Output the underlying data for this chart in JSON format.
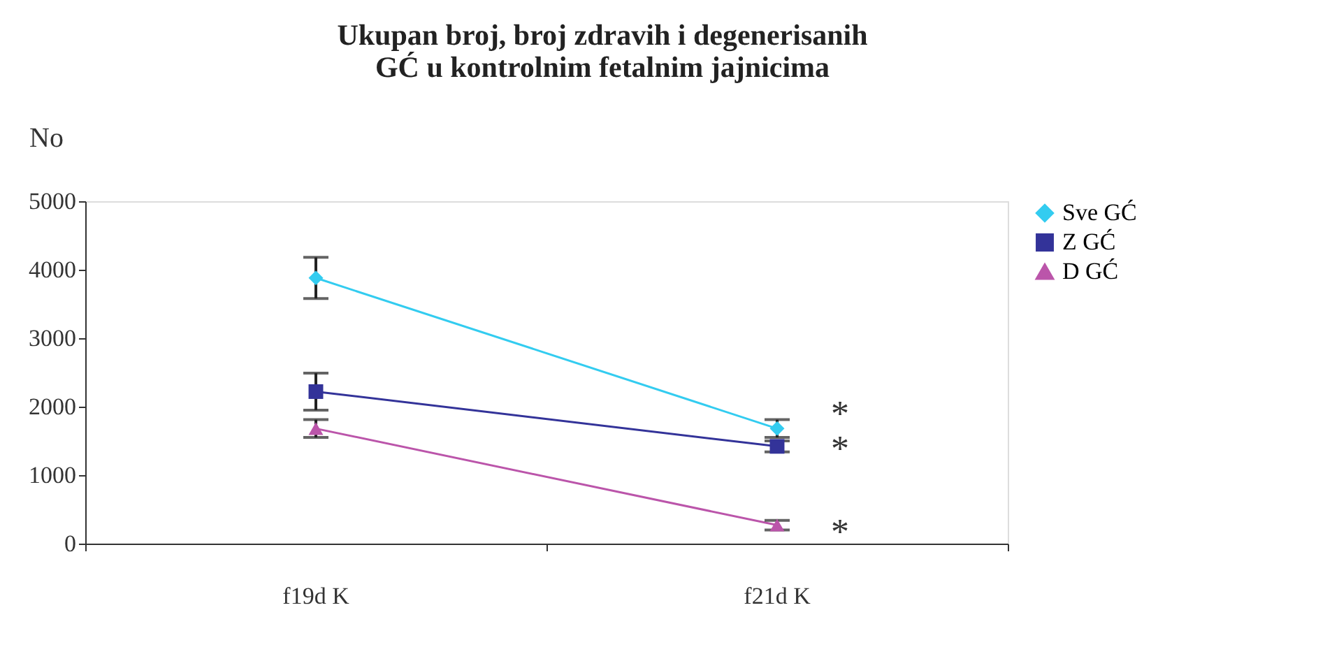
{
  "chart_data": {
    "type": "line",
    "title": "Ukupan broj, broj zdravih i  degenerisanih GĆ u kontrolnim fetalnim jajnicima",
    "ylabel": "No",
    "categories": [
      "f19d K",
      "f21d K"
    ],
    "series": [
      {
        "name": "Sve GĆ",
        "color": "#33ccf0",
        "marker": "diamond",
        "values": [
          3880,
          1680
        ],
        "errors": [
          300,
          130
        ]
      },
      {
        "name": "Z GĆ",
        "color": "#333399",
        "marker": "square",
        "values": [
          2220,
          1420
        ],
        "errors": [
          270,
          80
        ]
      },
      {
        "name": "D GĆ",
        "color": "#bb55aa",
        "marker": "triangle",
        "values": [
          1680,
          270
        ],
        "errors": [
          130,
          70
        ]
      }
    ],
    "annotations": [
      "*",
      "*",
      "*"
    ],
    "ylim": [
      0,
      5000
    ],
    "yticks": [
      0,
      1000,
      2000,
      3000,
      4000,
      5000
    ],
    "grid": false,
    "legend": "top right"
  }
}
